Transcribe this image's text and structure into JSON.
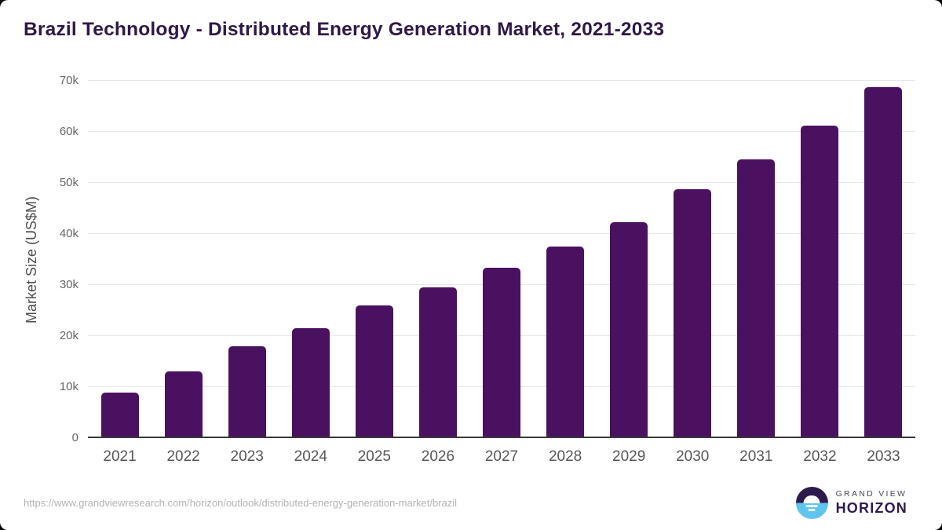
{
  "header": {
    "title": "Brazil Technology - Distributed Energy Generation Market, 2021-2033"
  },
  "chart_data": {
    "type": "bar",
    "title": "Brazil Technology - Distributed Energy Generation Market, 2021-2033",
    "categories": [
      "2021",
      "2022",
      "2023",
      "2024",
      "2025",
      "2026",
      "2027",
      "2028",
      "2029",
      "2030",
      "2031",
      "2032",
      "2033"
    ],
    "values": [
      9000,
      13100,
      18000,
      21500,
      26000,
      29500,
      33400,
      37600,
      42300,
      48800,
      54600,
      61200,
      68800
    ],
    "xlabel": "",
    "ylabel": "Market Size (US$M)",
    "ylim": [
      0,
      70000
    ],
    "yticks": [
      {
        "label": "0",
        "value": 0
      },
      {
        "label": "10k",
        "value": 10000
      },
      {
        "label": "20k",
        "value": 20000
      },
      {
        "label": "30k",
        "value": 30000
      },
      {
        "label": "40k",
        "value": 40000
      },
      {
        "label": "50k",
        "value": 50000
      },
      {
        "label": "60k",
        "value": 60000
      },
      {
        "label": "70k",
        "value": 70000
      }
    ],
    "grid": "horizontal",
    "legend": "none"
  },
  "footer": {
    "source_url": "https://www.grandviewresearch.com/horizon/outlook/distributed-energy-generation-market/brazil",
    "logo": {
      "top_text": "GRAND VIEW",
      "bottom_text": "HORIZON"
    }
  },
  "colors": {
    "bar": "#4a1161",
    "title": "#2f1846",
    "grid": "#e7e7e7",
    "axis": "#383838",
    "xtick": "#57575b",
    "ytick": "#666666",
    "ylabel": "#4d4d4d",
    "url": "#b3b3b3",
    "logo-purple": "#2d1b4e",
    "logo-blue": "#5fc4ee",
    "logo-gray": "#4a4656"
  }
}
